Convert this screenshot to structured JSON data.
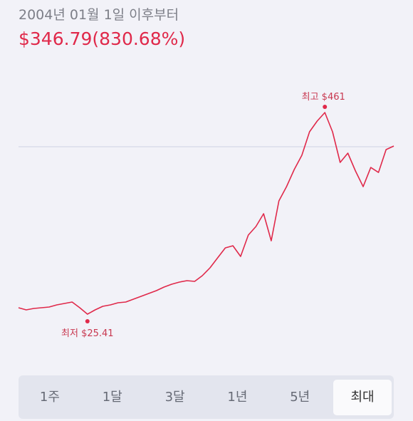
{
  "header": {
    "subtitle": "2004년 01월 1일 이후부터",
    "price": "$346.79(830.68%)"
  },
  "chart_data": {
    "type": "line",
    "color": "#e0294a",
    "values": [
      39.3,
      34.6,
      37.7,
      39.3,
      40.8,
      45.4,
      48.5,
      51.6,
      39.3,
      25.41,
      34.6,
      42.3,
      45.4,
      50.0,
      51.6,
      57.7,
      63.9,
      70.0,
      76.2,
      83.9,
      90.0,
      94.7,
      97.7,
      96.2,
      108.5,
      125.4,
      147.0,
      168.5,
      173.2,
      150.1,
      196.3,
      214.7,
      242.4,
      183.9,
      270.1,
      300.9,
      337.8,
      368.6,
      419.4,
      442.5,
      461,
      419.4,
      353.2,
      373.2,
      334.8,
      300.9,
      342.4,
      331.6,
      380.9,
      388.6
    ],
    "high_label": "최고 $461",
    "low_label": "최저 $25.41"
  },
  "ranges": [
    "1주",
    "1달",
    "3달",
    "1년",
    "5년",
    "최대"
  ]
}
